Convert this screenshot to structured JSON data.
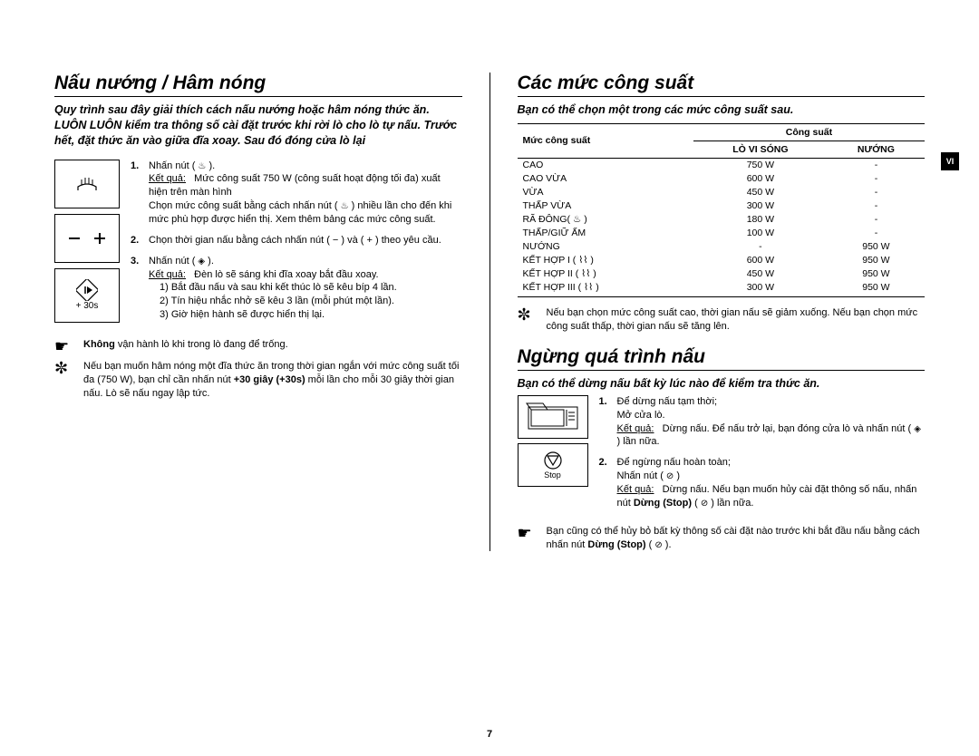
{
  "page_number": "7",
  "side_tab": "VI",
  "left": {
    "title": "Nấu nướng / Hâm nóng",
    "intro": "Quy trình sau đây giải thích cách nấu nướng hoặc hâm nóng thức ăn. LUÔN LUÔN kiểm tra thông số cài đặt trước khi rời lò cho lò tự nấu. Trước hết, đặt thức ăn vào giữa đĩa xoay. Sau đó đóng cửa lò lại",
    "icons": {
      "plus30": "+ 30s"
    },
    "steps": [
      {
        "num": "1.",
        "line1_pre": "Nhấn nút ( ",
        "line1_post": " ).",
        "result_label": "Kết quả:",
        "result": "Mức công suất 750 W (công suất hoạt động tối đa) xuất hiện trên màn hình",
        "extra_pre": "Chọn mức công suất bằng cách nhấn nút ( ",
        "extra_post": " ) nhiều lần cho đến khi mức phù hợp được hiển thị. Xem thêm bảng các mức công suất."
      },
      {
        "num": "2.",
        "text": "Chọn thời gian nấu bằng cách nhấn nút ( − ) và ( + ) theo yêu cầu."
      },
      {
        "num": "3.",
        "line1_pre": "Nhấn nút ( ",
        "line1_post": " ).",
        "result_label": "Kết quả:",
        "result": "Đèn lò sẽ sáng khi đĩa xoay bắt đầu xoay.",
        "sub": [
          "1) Bắt đầu nấu và sau khi kết thúc lò sẽ kêu bíp 4 lần.",
          "2) Tín hiệu nhắc nhở sẽ kêu 3 lần (mỗi phút một lần).",
          "3) Giờ hiện hành sẽ được hiển thị lại."
        ]
      }
    ],
    "notes": [
      {
        "icon": "☛",
        "pre": "",
        "bold": "Không",
        "post": " vận hành lò khi trong lò đang để trống."
      },
      {
        "icon": "✼",
        "text_pre": "Nếu bạn muốn hâm nóng một đĩa thức ăn trong thời gian ngắn với mức công suất tối đa (750 W), bạn chỉ cần nhấn nút ",
        "bold": "+30 giây (+30s)",
        "text_post": " mỗi lần cho mỗi 30 giây thời gian nấu. Lò sẽ nấu ngay lập tức."
      }
    ]
  },
  "right": {
    "title1": "Các mức công suất",
    "intro1": "Bạn có thể chọn một trong các mức công suất sau.",
    "table": {
      "head_level": "Mức công suất",
      "head_power": "Công suất",
      "head_micro": "LÒ VI SÓNG",
      "head_grill": "NƯỚNG",
      "rows": [
        {
          "level": "CAO",
          "micro": "750 W",
          "grill": "-"
        },
        {
          "level": "CAO VỪA",
          "micro": "600 W",
          "grill": "-"
        },
        {
          "level": "VỪA",
          "micro": "450 W",
          "grill": "-"
        },
        {
          "level": "THẤP VỪA",
          "micro": "300 W",
          "grill": "-"
        },
        {
          "level": "RÃ ĐÔNG( ♨ )",
          "micro": "180 W",
          "grill": "-"
        },
        {
          "level": "THẤP/GIỮ ẤM",
          "micro": "100 W",
          "grill": "-"
        },
        {
          "level": "NƯỚNG",
          "micro": "-",
          "grill": "950 W"
        },
        {
          "level": "KẾT HỢP I ( ⌇⌇ )",
          "micro": "600 W",
          "grill": "950 W"
        },
        {
          "level": "KẾT HỢP II ( ⌇⌇ )",
          "micro": "450 W",
          "grill": "950 W"
        },
        {
          "level": "KẾT HỢP III ( ⌇⌇ )",
          "micro": "300 W",
          "grill": "950 W"
        }
      ]
    },
    "note1": {
      "icon": "✼",
      "text": "Nếu bạn chọn mức công suất cao, thời gian nấu sẽ giảm xuống. Nếu bạn chọn mức công suất thấp, thời gian nấu sẽ tăng lên."
    },
    "title2": "Ngừng quá trình nấu",
    "intro2": "Bạn có thể dừng nấu bất kỳ lúc nào để kiểm tra thức ăn.",
    "stop_icon_label": "Stop",
    "stop_steps": [
      {
        "num": "1.",
        "line": "Để dừng nấu tạm thời;",
        "line2": "Mở cửa lò.",
        "result_label": "Kết quả:",
        "result_pre": "Dừng nấu. Để nấu trở lại, bạn đóng cửa lò và nhấn nút ( ",
        "result_post": " ) lần nữa."
      },
      {
        "num": "2.",
        "line": "Để ngừng nấu hoàn toàn;",
        "line2_pre": "Nhấn nút  ( ",
        "line2_post": " )",
        "result_label": "Kết quả:",
        "result_pre": "Dừng nấu. Nếu bạn muốn hủy cài đặt thông số nấu, nhấn nút ",
        "result_bold": "Dừng (Stop)",
        "result_mid": " ( ",
        "result_post": " ) lần nữa."
      }
    ],
    "note2": {
      "icon": "☛",
      "text_pre": "Bạn cũng có thể hủy bỏ bất kỳ thông số cài đặt nào trước khi bắt đầu nấu bằng cách nhấn nút ",
      "bold": "Dừng (Stop)",
      "text_mid": " ( ",
      "text_post": " )."
    }
  }
}
